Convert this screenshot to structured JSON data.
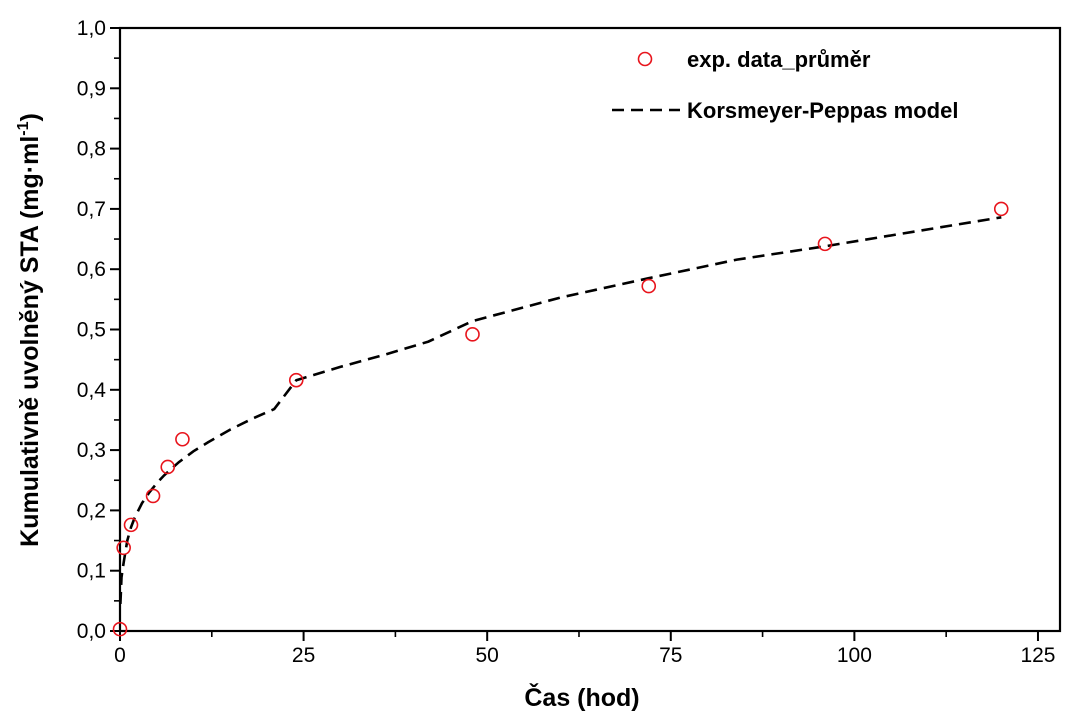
{
  "chart_data": {
    "type": "scatter",
    "xlabel": "Čas (hod)",
    "ylabel_main": "Kumulativně uvolněný STA (mg·ml",
    "ylabel_sup": "-1",
    "ylabel_close": ")",
    "xlim": [
      0,
      128
    ],
    "ylim": [
      0.0,
      1.0
    ],
    "x_ticks": [
      0,
      25,
      50,
      75,
      100,
      125
    ],
    "x_tick_labels": [
      "0",
      "25",
      "50",
      "75",
      "100",
      "125"
    ],
    "x_minor_ticks": [
      12.5,
      37.5,
      62.5,
      87.5,
      112.5
    ],
    "y_ticks": [
      0.0,
      0.1,
      0.2,
      0.3,
      0.4,
      0.5,
      0.6,
      0.7,
      0.8,
      0.9,
      1.0
    ],
    "y_tick_labels": [
      "0,0",
      "0,1",
      "0,2",
      "0,3",
      "0,4",
      "0,5",
      "0,6",
      "0,7",
      "0,8",
      "0,9",
      "1,0"
    ],
    "y_minor_ticks": [
      0.05,
      0.15,
      0.25,
      0.35,
      0.45,
      0.55,
      0.65,
      0.75,
      0.85,
      0.95
    ],
    "grid": false,
    "legend_position": "top-right",
    "series": [
      {
        "name": "exp. data_průměr",
        "kind": "markers",
        "marker": "open-circle",
        "color": "#e8141c",
        "x": [
          0,
          0.5,
          1.5,
          4.5,
          6.5,
          8.5,
          24,
          48,
          72,
          96,
          120
        ],
        "y": [
          0.003,
          0.138,
          0.176,
          0.224,
          0.272,
          0.318,
          0.416,
          0.492,
          0.572,
          0.642,
          0.7
        ]
      },
      {
        "name": "Korsmeyer-Peppas model",
        "kind": "dashed-line",
        "color": "#000000",
        "x": [
          0.05,
          0.2,
          0.5,
          1,
          1.5,
          2,
          3,
          4,
          5,
          6,
          7,
          8,
          10,
          12,
          15,
          18,
          21,
          24,
          30,
          36,
          42,
          48,
          60,
          72,
          84,
          96,
          108,
          120
        ],
        "y": [
          0.045,
          0.089,
          0.114,
          0.15,
          0.172,
          0.188,
          0.212,
          0.23,
          0.245,
          0.258,
          0.269,
          0.28,
          0.298,
          0.313,
          0.334,
          0.352,
          0.368,
          0.416,
          0.438,
          0.458,
          0.48,
          0.514,
          0.553,
          0.585,
          0.616,
          0.638,
          0.662,
          0.686
        ]
      }
    ]
  }
}
